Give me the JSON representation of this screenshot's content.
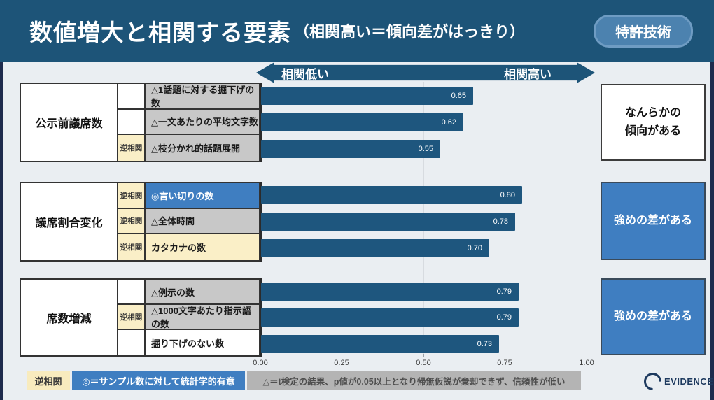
{
  "header": {
    "title": "数値増大と相関する要素",
    "subtitle": "（相関高い＝傾向差がはっきり）",
    "badge": "特許技術"
  },
  "axis_banner": {
    "left": "相関低い",
    "right": "相関高い"
  },
  "groups": [
    {
      "label": "公示前議席数",
      "conclusion": "なんらかの\n傾向がある",
      "conclusion_style": "outline",
      "rows": [
        {
          "tag": "",
          "tag_style": "none",
          "label": "△1話題に対する掘下げの数",
          "style": "gray"
        },
        {
          "tag": "",
          "tag_style": "none",
          "label": "△一文あたりの平均文字数",
          "style": "gray"
        },
        {
          "tag": "逆相関",
          "tag_style": "yellow",
          "label": "△枝分かれ的話題展開",
          "style": "gray"
        }
      ]
    },
    {
      "label": "議席割合変化",
      "conclusion": "強めの差がある",
      "conclusion_style": "blue",
      "rows": [
        {
          "tag": "逆相関",
          "tag_style": "yellow",
          "label": "◎言い切りの数",
          "style": "blue"
        },
        {
          "tag": "逆相関",
          "tag_style": "yellow",
          "label": "△全体時間",
          "style": "gray"
        },
        {
          "tag": "逆相関",
          "tag_style": "yellow",
          "label": "カタカナの数",
          "style": "cream"
        }
      ]
    },
    {
      "label": "席数増減",
      "conclusion": "強めの差がある",
      "conclusion_style": "blue",
      "rows": [
        {
          "tag": "",
          "tag_style": "none",
          "label": "△例示の数",
          "style": "gray"
        },
        {
          "tag": "逆相関",
          "tag_style": "yellow",
          "label": "△1000文字あたり指示語の数",
          "style": "gray"
        },
        {
          "tag": "",
          "tag_style": "none",
          "label": "掘り下げのない数",
          "style": "white"
        }
      ]
    }
  ],
  "chart_data": {
    "type": "bar",
    "orientation": "horizontal",
    "title": "数値増大と相関する要素（相関高い＝傾向差がはっきり）",
    "categories": [
      "△1話題に対する掘下げの数",
      "△一文あたりの平均文字数",
      "△枝分かれ的話題展開",
      "◎言い切りの数",
      "△全体時間",
      "カタカナの数",
      "△例示の数",
      "△1000文字あたり指示語の数",
      "掘り下げのない数"
    ],
    "values": [
      0.65,
      0.62,
      0.55,
      0.8,
      0.78,
      0.7,
      0.79,
      0.79,
      0.73
    ],
    "xlim": [
      0,
      1
    ],
    "xticks": [
      "0.00",
      "0.25",
      "0.50",
      "0.75",
      "1.00"
    ],
    "grid": true,
    "legend_position": "none",
    "bar_color": "#1E567E"
  },
  "footer": {
    "legend_inverse": "逆相関",
    "legend_significant": "◎＝サンプル数に対して統計学的有意",
    "legend_triangle": "△＝t検定の結果、p値が0.05以上となり帰無仮説が棄却できず、信頼性が低い",
    "logo_text": "EVIDENCE"
  },
  "colors": {
    "header_bg": "#1D5478",
    "badge_bg": "#4C82AF",
    "bar": "#1E567E",
    "highlight_blue": "#3F7EC1",
    "tag_yellow": "#FAEFC7",
    "row_gray": "#C8C8C8",
    "page_bg": "#EAEEF2",
    "edge_navy": "#1E2B4D",
    "logo_navy": "#1E3A5F"
  }
}
